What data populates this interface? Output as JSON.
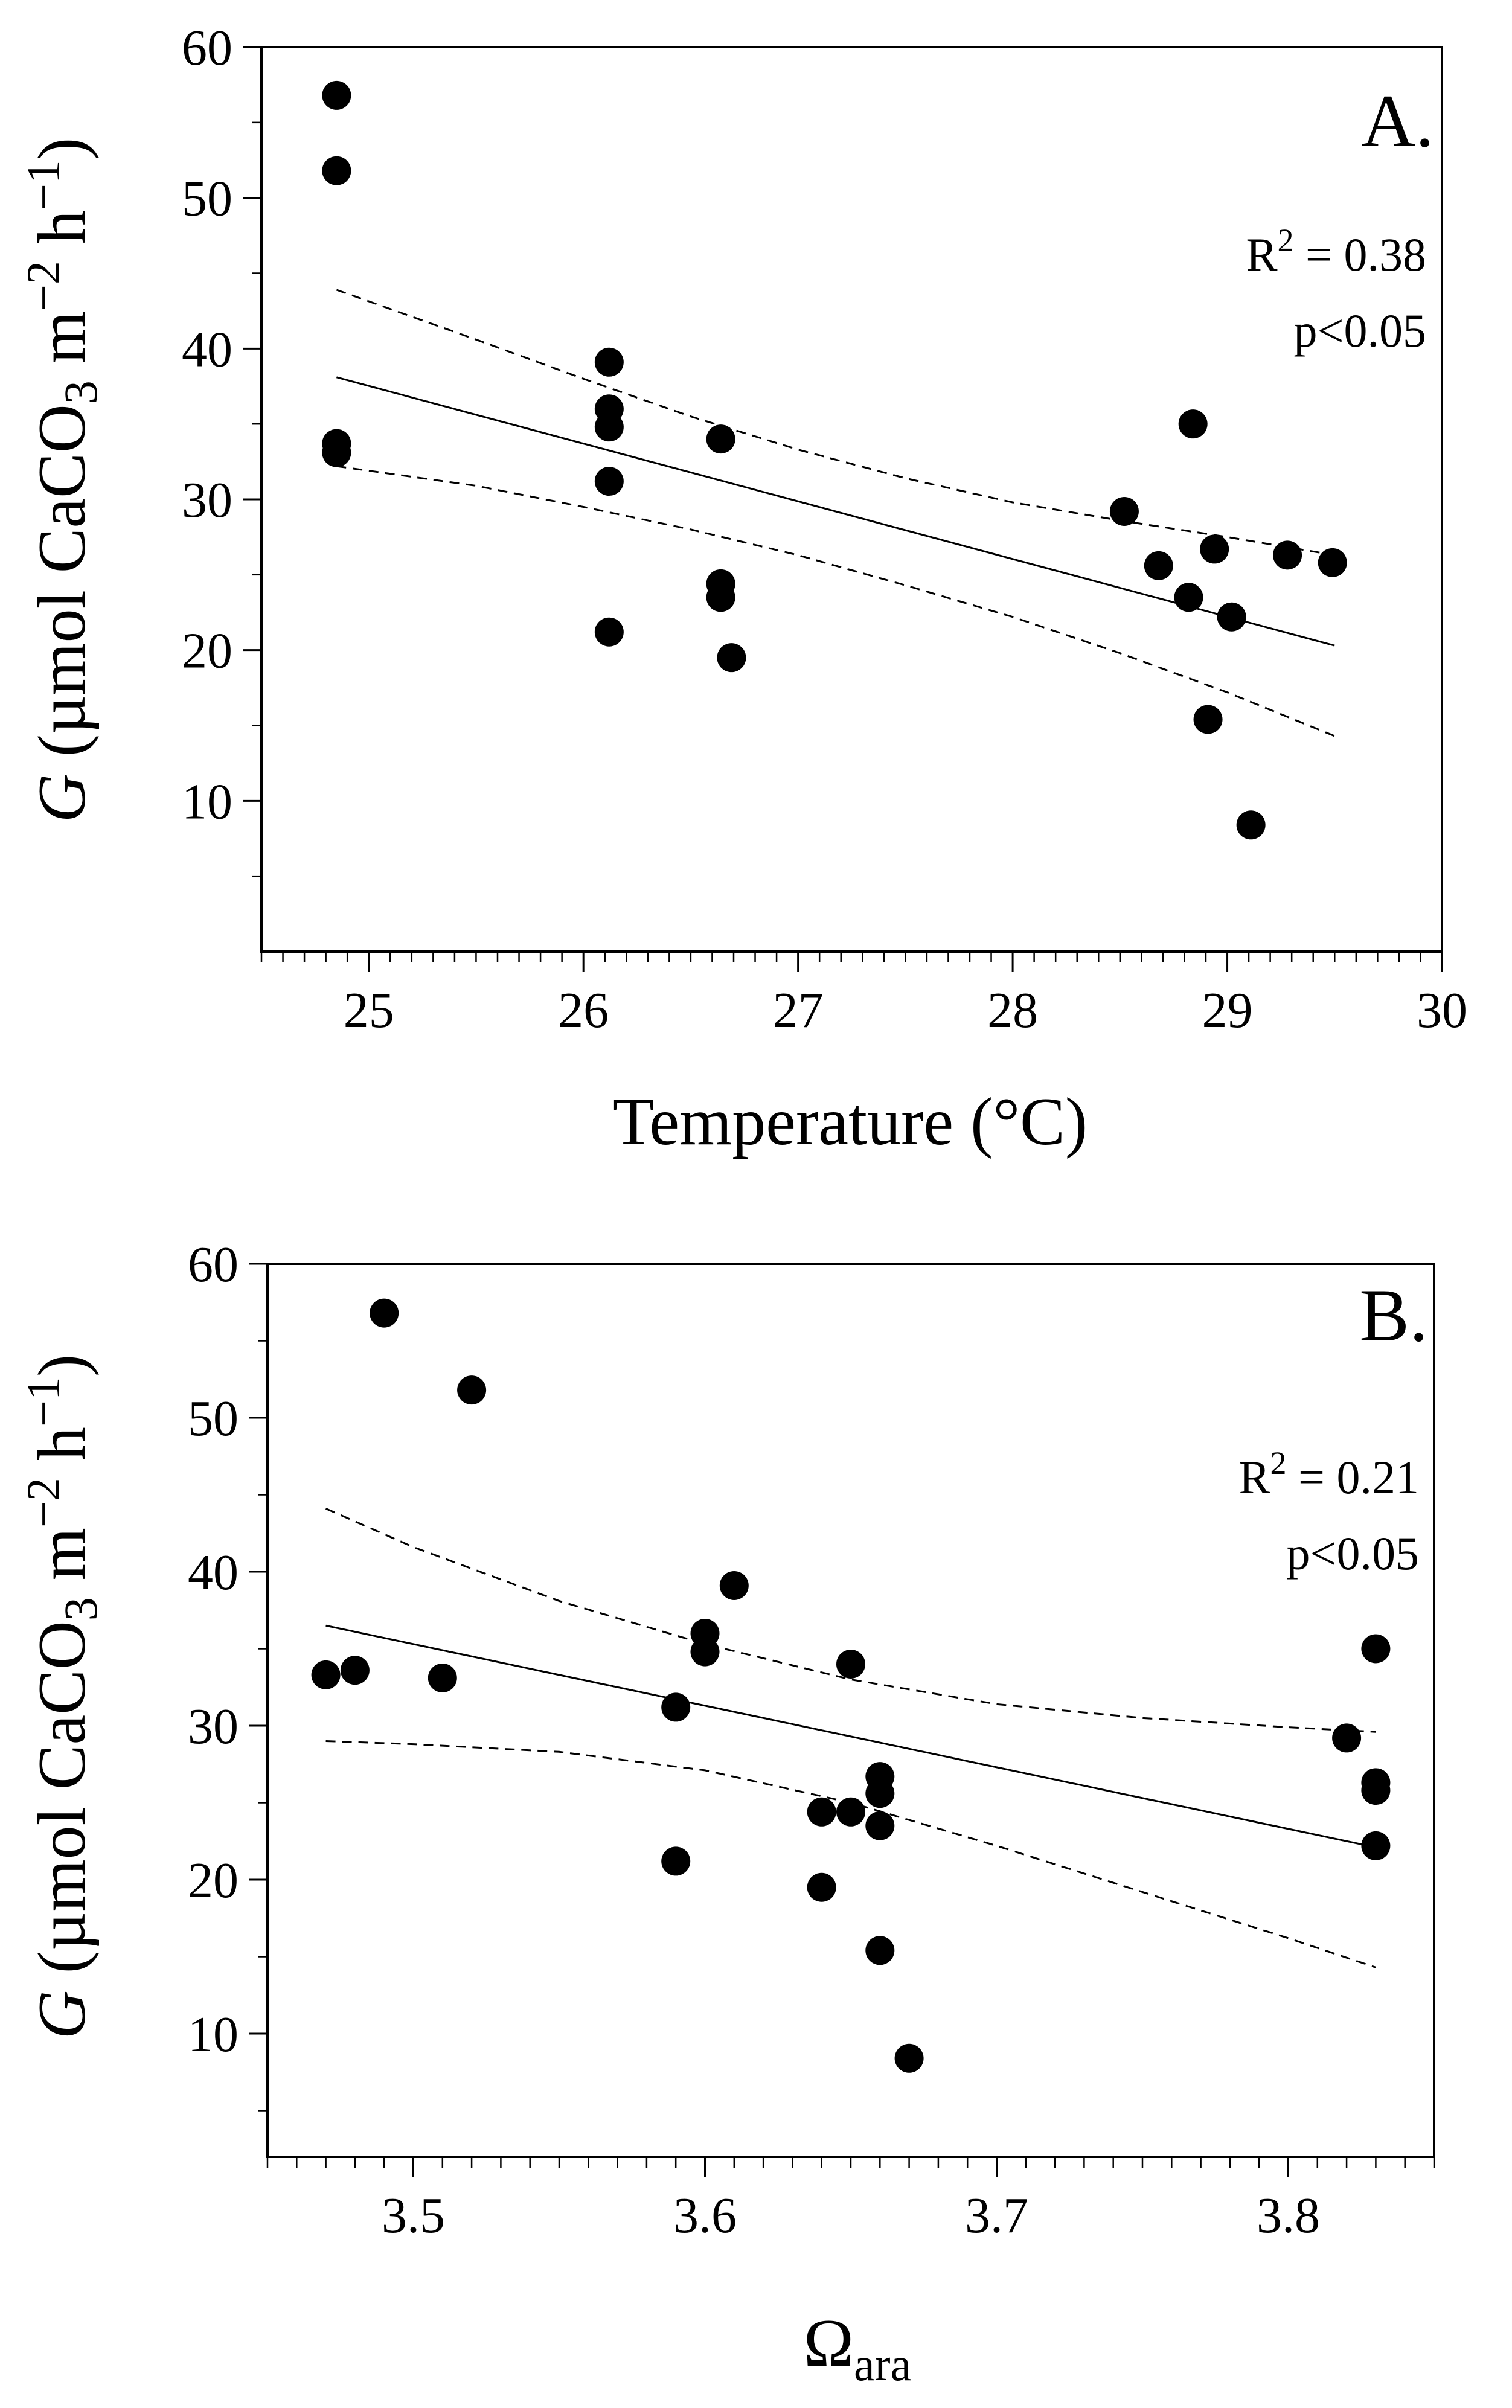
{
  "chart_data": [
    {
      "type": "scatter",
      "panel_label": "A.",
      "xlabel": "Temperature (°C)",
      "ylabel": {
        "italic": "G",
        "rest": " (µmol CaCO",
        "sub": "3",
        "unit_m": " m",
        "sup_m": "−2",
        "unit_h": " h",
        "sup_h": "−1",
        "close": ")"
      },
      "xlim": [
        24.5,
        30
      ],
      "ylim": [
        0,
        60
      ],
      "x_ticks": [
        25,
        26,
        27,
        28,
        29,
        30
      ],
      "x_minor_step": 0.1,
      "y_ticks": [
        10,
        20,
        30,
        40,
        50,
        60
      ],
      "y_minor_ticks": [
        5,
        15,
        25,
        35,
        45,
        55
      ],
      "points": [
        {
          "x": 24.85,
          "y": 56.8
        },
        {
          "x": 24.85,
          "y": 51.8
        },
        {
          "x": 24.85,
          "y": 33.7
        },
        {
          "x": 24.85,
          "y": 33.1
        },
        {
          "x": 26.12,
          "y": 39.1
        },
        {
          "x": 26.12,
          "y": 36.0
        },
        {
          "x": 26.12,
          "y": 34.8
        },
        {
          "x": 26.12,
          "y": 31.2
        },
        {
          "x": 26.12,
          "y": 21.2
        },
        {
          "x": 26.64,
          "y": 34.0
        },
        {
          "x": 26.64,
          "y": 24.4
        },
        {
          "x": 26.64,
          "y": 23.5
        },
        {
          "x": 26.69,
          "y": 19.5
        },
        {
          "x": 28.52,
          "y": 29.2
        },
        {
          "x": 28.68,
          "y": 25.6
        },
        {
          "x": 28.82,
          "y": 23.5
        },
        {
          "x": 28.84,
          "y": 35.0
        },
        {
          "x": 28.91,
          "y": 15.4
        },
        {
          "x": 28.94,
          "y": 26.7
        },
        {
          "x": 29.02,
          "y": 22.2
        },
        {
          "x": 29.11,
          "y": 8.4
        },
        {
          "x": 29.28,
          "y": 26.3
        },
        {
          "x": 29.49,
          "y": 25.8
        }
      ],
      "fit_line": {
        "x": [
          24.85,
          29.5
        ],
        "y": [
          38.1,
          20.3
        ]
      },
      "ci_upper": {
        "x": [
          24.85,
          25.5,
          26.0,
          26.5,
          27.0,
          27.5,
          28.0,
          28.5,
          29.0,
          29.5
        ],
        "y": [
          43.9,
          40.6,
          38.0,
          35.5,
          33.3,
          31.4,
          29.8,
          28.6,
          27.5,
          26.3
        ]
      },
      "ci_lower": {
        "x": [
          24.85,
          25.5,
          26.0,
          26.5,
          27.0,
          27.5,
          28.0,
          28.5,
          29.0,
          29.5
        ],
        "y": [
          32.2,
          30.9,
          29.5,
          28.0,
          26.3,
          24.3,
          22.2,
          19.8,
          17.2,
          14.3
        ]
      },
      "stats": {
        "r2": "R",
        "r2_sup": "2",
        "r2_val": " = 0.38",
        "p": "p<0.05"
      }
    },
    {
      "type": "scatter",
      "panel_label": "B.",
      "xlabel": {
        "main": "Ω",
        "sub": "ara"
      },
      "ylabel": {
        "italic": "G",
        "rest": " (µmol CaCO",
        "sub": "3",
        "unit_m": " m",
        "sup_m": "−2",
        "unit_h": " h",
        "sup_h": "−1",
        "close": ")"
      },
      "xlim": [
        3.45,
        3.85
      ],
      "ylim": [
        2,
        60
      ],
      "x_ticks": [
        3.5,
        3.6,
        3.7,
        3.8
      ],
      "x_minor_step": 0.01,
      "y_ticks": [
        10,
        20,
        30,
        40,
        50,
        60
      ],
      "y_minor_ticks": [
        5,
        15,
        25,
        35,
        45,
        55
      ],
      "points": [
        {
          "x": 3.47,
          "y": 33.3
        },
        {
          "x": 3.48,
          "y": 33.6
        },
        {
          "x": 3.49,
          "y": 56.8
        },
        {
          "x": 3.51,
          "y": 33.1
        },
        {
          "x": 3.52,
          "y": 51.8
        },
        {
          "x": 3.59,
          "y": 31.2
        },
        {
          "x": 3.59,
          "y": 21.2
        },
        {
          "x": 3.6,
          "y": 36.0
        },
        {
          "x": 3.6,
          "y": 34.8
        },
        {
          "x": 3.61,
          "y": 39.1
        },
        {
          "x": 3.64,
          "y": 24.4
        },
        {
          "x": 3.64,
          "y": 19.5
        },
        {
          "x": 3.65,
          "y": 34.0
        },
        {
          "x": 3.65,
          "y": 24.4
        },
        {
          "x": 3.66,
          "y": 26.7
        },
        {
          "x": 3.66,
          "y": 25.6
        },
        {
          "x": 3.66,
          "y": 23.5
        },
        {
          "x": 3.66,
          "y": 15.4
        },
        {
          "x": 3.67,
          "y": 8.4
        },
        {
          "x": 3.82,
          "y": 29.2
        },
        {
          "x": 3.83,
          "y": 35.0
        },
        {
          "x": 3.83,
          "y": 26.3
        },
        {
          "x": 3.83,
          "y": 25.8
        },
        {
          "x": 3.83,
          "y": 22.2
        }
      ],
      "fit_line": {
        "x": [
          3.47,
          3.83
        ],
        "y": [
          36.5,
          22.1
        ]
      },
      "ci_upper": {
        "x": [
          3.47,
          3.5,
          3.55,
          3.6,
          3.65,
          3.7,
          3.75,
          3.8,
          3.83
        ],
        "y": [
          44.1,
          41.6,
          38.1,
          35.3,
          33.0,
          31.4,
          30.5,
          29.9,
          29.6
        ]
      },
      "ci_lower": {
        "x": [
          3.47,
          3.5,
          3.55,
          3.6,
          3.65,
          3.7,
          3.75,
          3.8,
          3.83
        ],
        "y": [
          29.0,
          28.8,
          28.3,
          27.1,
          25.0,
          22.2,
          19.2,
          16.2,
          14.3
        ]
      },
      "stats": {
        "r2": "R",
        "r2_sup": "2",
        "r2_val": " = 0.21",
        "p": "p<0.05"
      }
    }
  ]
}
